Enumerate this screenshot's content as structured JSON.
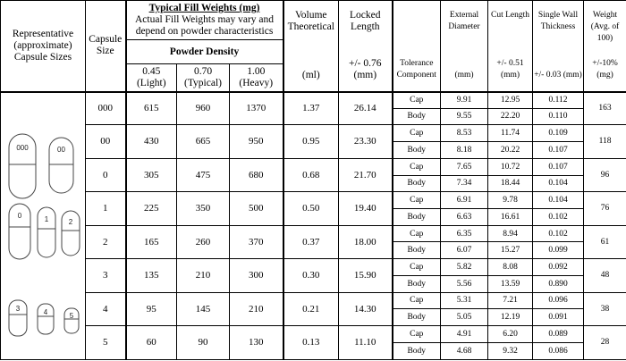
{
  "header": {
    "representative": "Representative (approximate) Capsule Sizes",
    "capsule_size": "Capsule Size",
    "fill_title": "Typical Fill Weights (mg)",
    "fill_note": "Actual Fill Weights may vary and depend on powder characteristics",
    "powder_density": "Powder Density",
    "densities": [
      "0.45 (Light)",
      "0.70 (Typical)",
      "1.00 (Heavy)"
    ],
    "volume": "Volume Theoretical",
    "volume_unit": "(ml)",
    "locked": "Locked Length",
    "locked_unit": "+/- 0.76 (mm)",
    "tolerance": "Tolerance Component",
    "diameter": "External Diameter",
    "diameter_unit": "(mm)",
    "cut": "Cut Length",
    "cut_unit": "+/- 0.51 (mm)",
    "wall": "Single Wall Thickness",
    "wall_unit": "+/- 0.03 (mm)",
    "weight": "Weight (Avg. of 100)",
    "weight_unit": "+/-10% (mg)"
  },
  "capsule_labels": [
    "000",
    "00",
    "0",
    "1",
    "2",
    "3",
    "4",
    "5"
  ],
  "rows": [
    {
      "size": "000",
      "fills": [
        "615",
        "960",
        "1370"
      ],
      "volume": "1.37",
      "locked": "26.14",
      "weight": "163",
      "parts": [
        {
          "component": "Cap",
          "diameter": "9.91",
          "cut": "12.95",
          "wall": "0.112"
        },
        {
          "component": "Body",
          "diameter": "9.55",
          "cut": "22.20",
          "wall": "0.110"
        }
      ]
    },
    {
      "size": "00",
      "fills": [
        "430",
        "665",
        "950"
      ],
      "volume": "0.95",
      "locked": "23.30",
      "weight": "118",
      "parts": [
        {
          "component": "Cap",
          "diameter": "8.53",
          "cut": "11.74",
          "wall": "0.109"
        },
        {
          "component": "Body",
          "diameter": "8.18",
          "cut": "20.22",
          "wall": "0.107"
        }
      ]
    },
    {
      "size": "0",
      "fills": [
        "305",
        "475",
        "680"
      ],
      "volume": "0.68",
      "locked": "21.70",
      "weight": "96",
      "parts": [
        {
          "component": "Cap",
          "diameter": "7.65",
          "cut": "10.72",
          "wall": "0.107"
        },
        {
          "component": "Body",
          "diameter": "7.34",
          "cut": "18.44",
          "wall": "0.104"
        }
      ]
    },
    {
      "size": "1",
      "fills": [
        "225",
        "350",
        "500"
      ],
      "volume": "0.50",
      "locked": "19.40",
      "weight": "76",
      "parts": [
        {
          "component": "Cap",
          "diameter": "6.91",
          "cut": "9.78",
          "wall": "0.104"
        },
        {
          "component": "Body",
          "diameter": "6.63",
          "cut": "16.61",
          "wall": "0.102"
        }
      ]
    },
    {
      "size": "2",
      "fills": [
        "165",
        "260",
        "370"
      ],
      "volume": "0.37",
      "locked": "18.00",
      "weight": "61",
      "parts": [
        {
          "component": "Cap",
          "diameter": "6.35",
          "cut": "8.94",
          "wall": "0.102"
        },
        {
          "component": "Body",
          "diameter": "6.07",
          "cut": "15.27",
          "wall": "0.099"
        }
      ]
    },
    {
      "size": "3",
      "fills": [
        "135",
        "210",
        "300"
      ],
      "volume": "0.30",
      "locked": "15.90",
      "weight": "48",
      "parts": [
        {
          "component": "Cap",
          "diameter": "5.82",
          "cut": "8.08",
          "wall": "0.092"
        },
        {
          "component": "Body",
          "diameter": "5.56",
          "cut": "13.59",
          "wall": "0.890"
        }
      ]
    },
    {
      "size": "4",
      "fills": [
        "95",
        "145",
        "210"
      ],
      "volume": "0.21",
      "locked": "14.30",
      "weight": "38",
      "parts": [
        {
          "component": "Cap",
          "diameter": "5.31",
          "cut": "7.21",
          "wall": "0.096"
        },
        {
          "component": "Body",
          "diameter": "5.05",
          "cut": "12.19",
          "wall": "0.091"
        }
      ]
    },
    {
      "size": "5",
      "fills": [
        "60",
        "90",
        "130"
      ],
      "volume": "0.13",
      "locked": "11.10",
      "weight": "28",
      "parts": [
        {
          "component": "Cap",
          "diameter": "4.91",
          "cut": "6.20",
          "wall": "0.089"
        },
        {
          "component": "Body",
          "diameter": "4.68",
          "cut": "9.32",
          "wall": "0.086"
        }
      ]
    }
  ]
}
